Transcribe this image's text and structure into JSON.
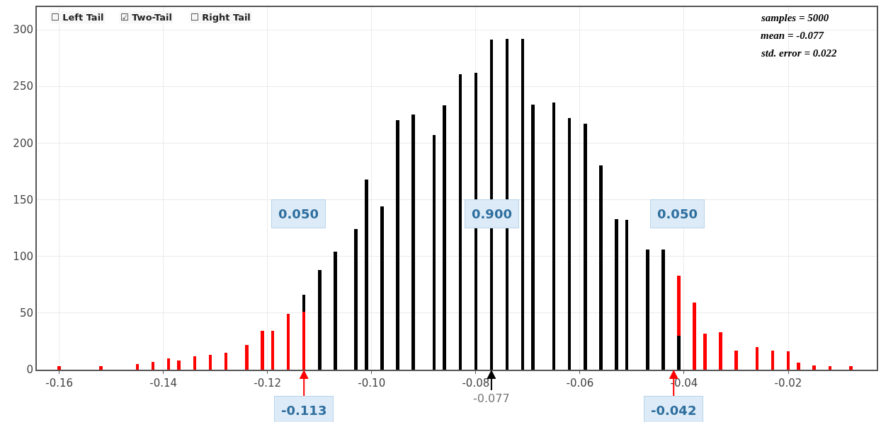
{
  "chart_data": {
    "type": "bar",
    "stacked": true,
    "x": [
      -0.16,
      -0.152,
      -0.145,
      -0.142,
      -0.139,
      -0.137,
      -0.134,
      -0.131,
      -0.128,
      -0.124,
      -0.121,
      -0.119,
      -0.116,
      -0.113,
      -0.11,
      -0.107,
      -0.103,
      -0.101,
      -0.098,
      -0.095,
      -0.092,
      -0.088,
      -0.086,
      -0.083,
      -0.08,
      -0.077,
      -0.074,
      -0.071,
      -0.069,
      -0.065,
      -0.062,
      -0.059,
      -0.056,
      -0.053,
      -0.051,
      -0.047,
      -0.044,
      -0.041,
      -0.038,
      -0.036,
      -0.033,
      -0.03,
      -0.026,
      -0.023,
      -0.02,
      -0.018,
      -0.015,
      -0.012,
      -0.008
    ],
    "series": [
      {
        "color": "#000000",
        "values": [
          null,
          null,
          null,
          null,
          null,
          null,
          null,
          null,
          null,
          null,
          null,
          null,
          null,
          null,
          null,
          null,
          null,
          null,
          null,
          null,
          null,
          null,
          null,
          null,
          null,
          null,
          null,
          null,
          null,
          null,
          null,
          null,
          null,
          null,
          null,
          null,
          null,
          30,
          null,
          null,
          null,
          null,
          null,
          null,
          null,
          null,
          null,
          null,
          null
        ]
      },
      {
        "color": "#ff0000",
        "values": [
          3,
          3,
          5,
          7,
          10,
          8,
          12,
          13,
          15,
          22,
          34,
          34,
          49,
          51,
          null,
          null,
          null,
          null,
          null,
          null,
          null,
          null,
          null,
          null,
          null,
          null,
          null,
          null,
          null,
          null,
          null,
          null,
          null,
          null,
          null,
          null,
          null,
          53,
          59,
          32,
          33,
          17,
          20,
          17,
          16,
          6,
          4,
          3,
          3
        ]
      },
      {
        "color": "#000000",
        "values": [
          null,
          null,
          null,
          null,
          null,
          null,
          null,
          null,
          null,
          null,
          null,
          null,
          null,
          15,
          88,
          104,
          124,
          168,
          144,
          220,
          225,
          207,
          233,
          261,
          262,
          291,
          292,
          292,
          234,
          236,
          222,
          217,
          180,
          133,
          132,
          106,
          106,
          null,
          null,
          null,
          null,
          null,
          null,
          null,
          null,
          null,
          null,
          null,
          null
        ]
      }
    ],
    "xlim": [
      -0.1643,
      -0.003
    ],
    "xticks": [
      -0.16,
      -0.14,
      -0.12,
      {
        "value": -0.1,
        "label": "-0.10"
      },
      -0.08,
      -0.06,
      -0.04,
      -0.02
    ],
    "ylim": [
      0,
      320
    ],
    "yticks": [
      0,
      50,
      100,
      150,
      200,
      250,
      300
    ],
    "grid": true,
    "annotations": [
      "☐ Left Tail",
      "☑ Two-Tail",
      "☐ Right Tail",
      "samples = 5000",
      "mean = -0.077",
      "std. error = 0.022",
      "0.050",
      "0.900",
      "0.050",
      {
        "text": "-0.113",
        "x": -0.113,
        "y": 0
      },
      {
        "text": "-0.077",
        "x": -0.077,
        "y": 0
      },
      {
        "text": "-0.042",
        "x": -0.042,
        "y": 0
      }
    ]
  }
}
